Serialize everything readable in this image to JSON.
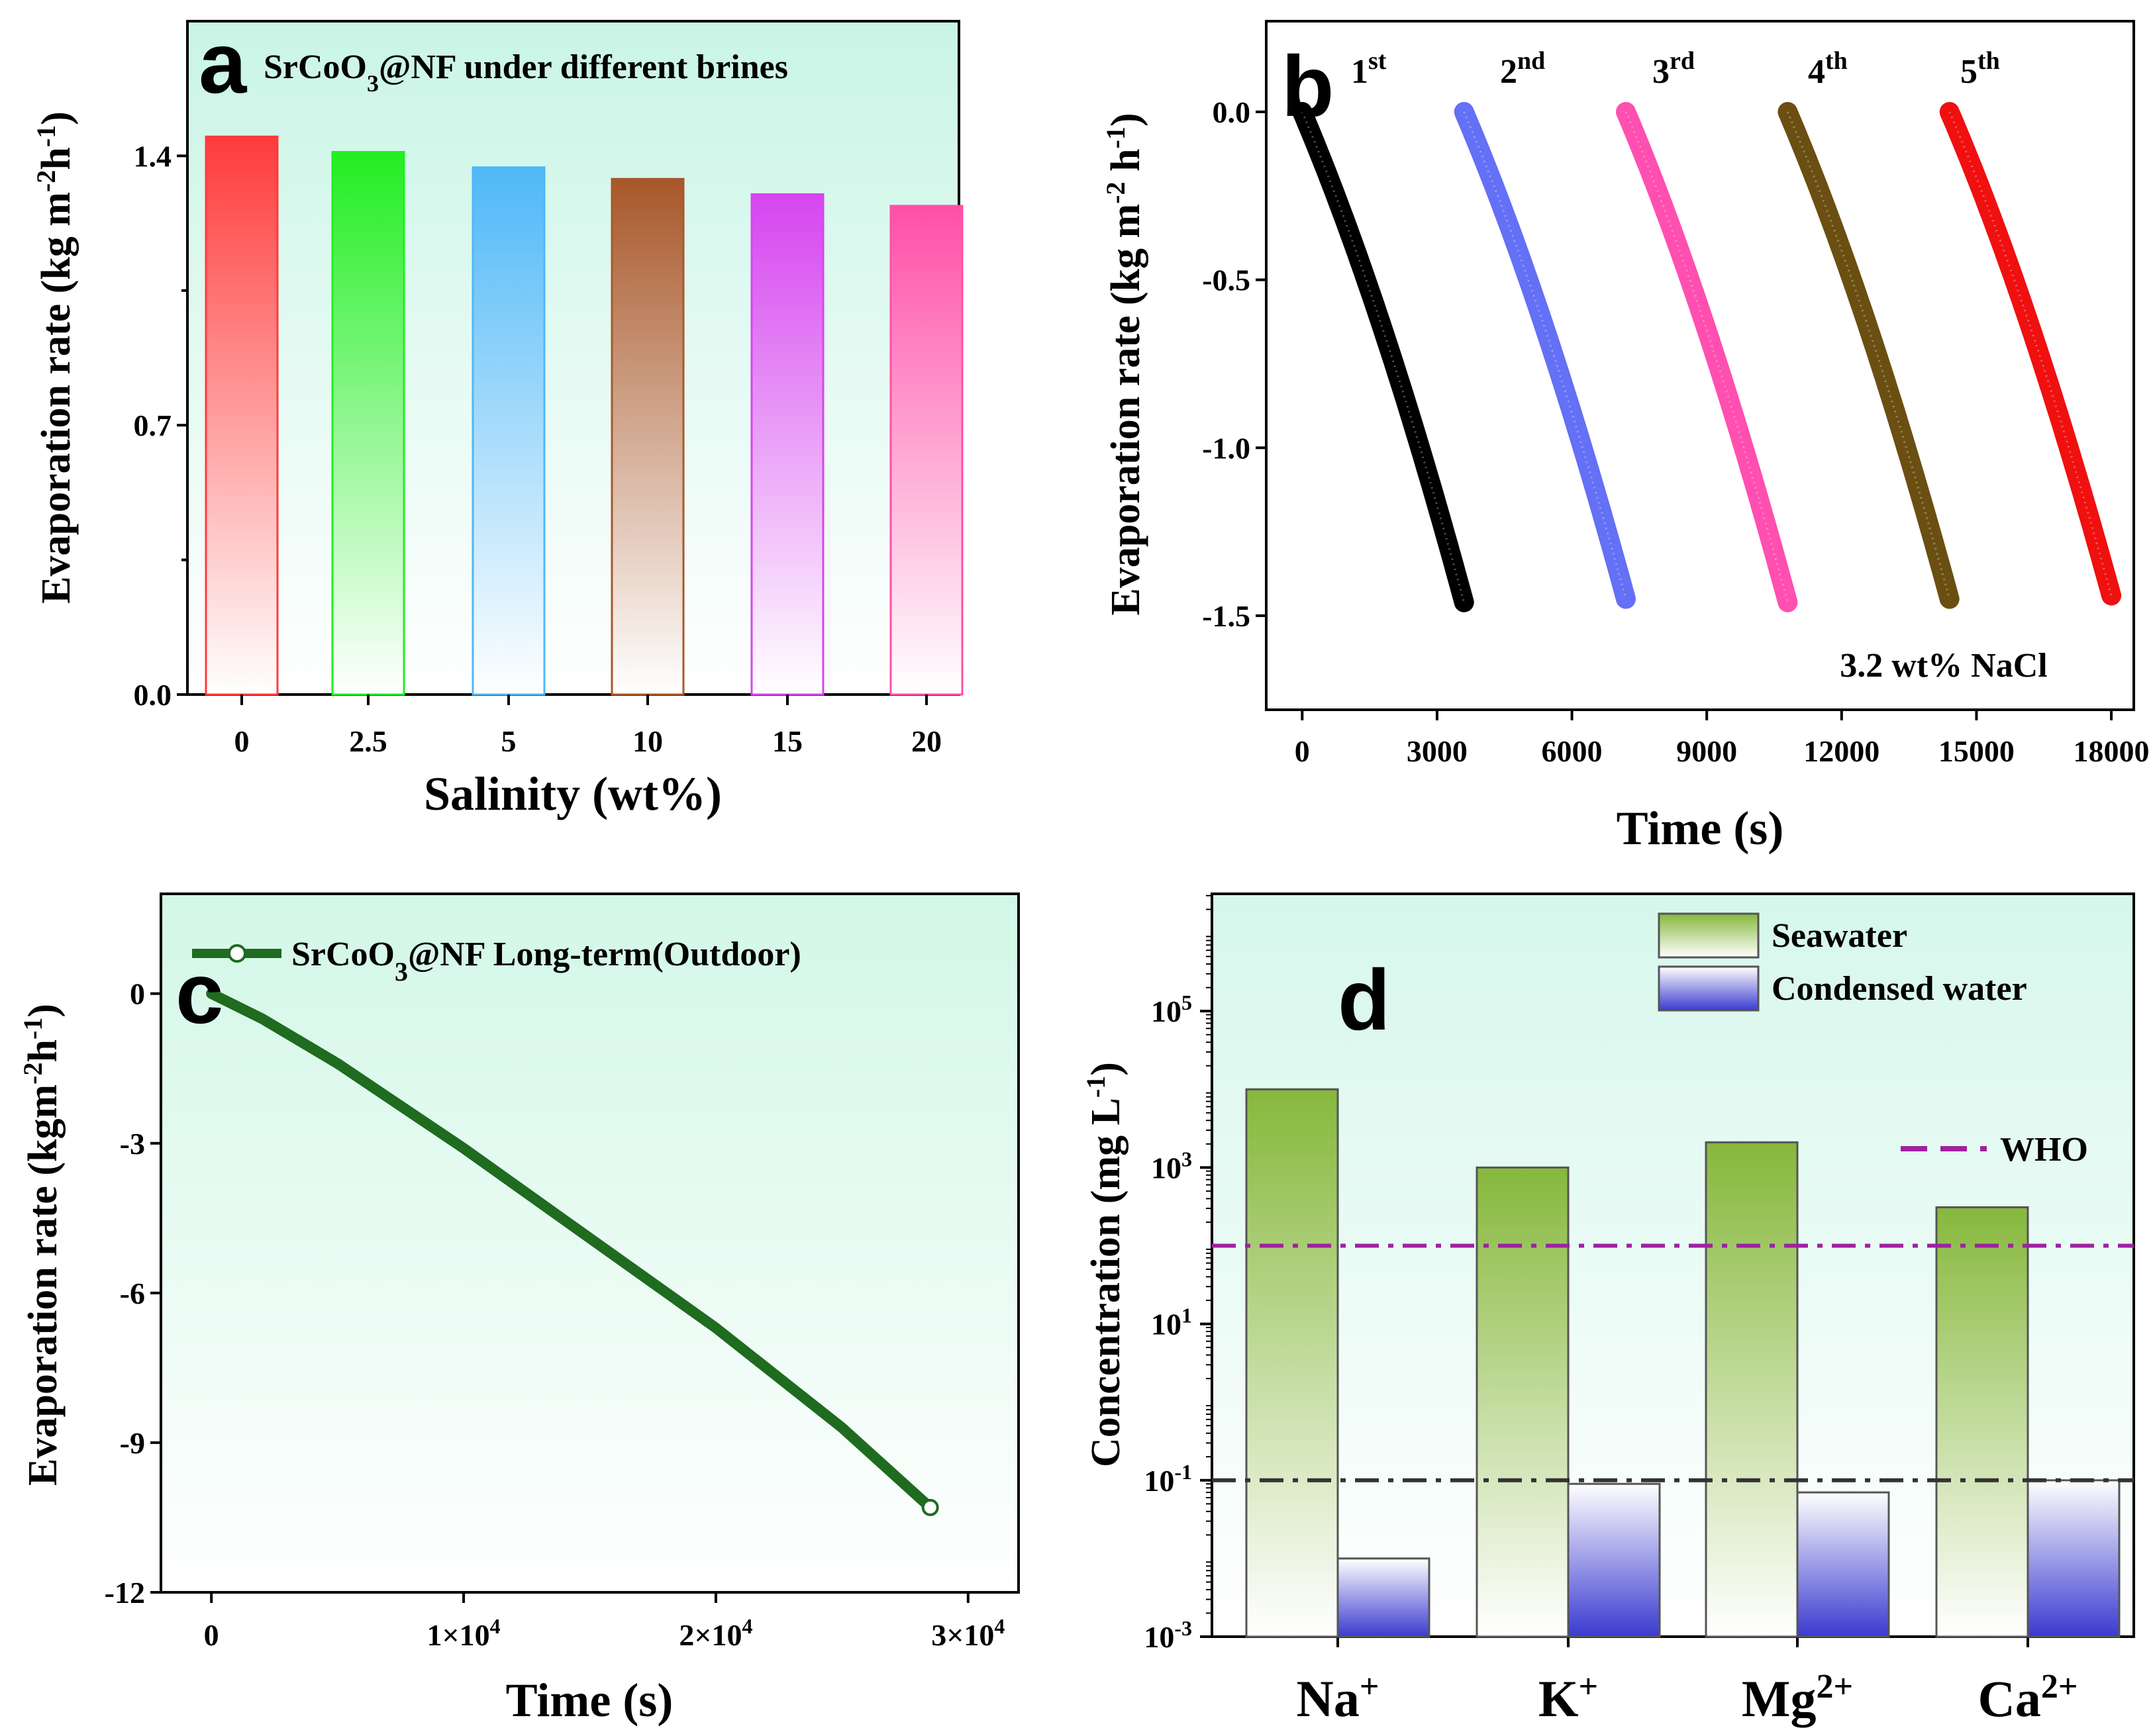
{
  "chart_data": [
    {
      "panel": "a",
      "type": "bar",
      "title": "SrCoO3@NF under different brines",
      "xlabel": "Salinity (wt%)",
      "ylabel": "Evaporation rate (kg m-2h-1)",
      "categories": [
        "0",
        "2.5",
        "5",
        "10",
        "15",
        "20"
      ],
      "values": [
        1.45,
        1.41,
        1.37,
        1.34,
        1.3,
        1.27
      ],
      "colors": [
        "#ff3b3b",
        "#22ee22",
        "#4fb8f7",
        "#a8582a",
        "#d645f0",
        "#ff4fa8"
      ],
      "ylim": [
        0,
        1.75
      ],
      "yticks": [
        0.0,
        0.7,
        1.4
      ],
      "yticklabels": [
        "0.0",
        "0.7",
        "1.4"
      ]
    },
    {
      "panel": "b",
      "type": "scatter",
      "xlabel": "Time (s)",
      "ylabel": "Evaporation rate (kg m-2 h-1)",
      "annotation": "3.2 wt% NaCl",
      "xlim": [
        -800,
        18500
      ],
      "ylim": [
        -1.78,
        0.27
      ],
      "xticks": [
        0,
        3000,
        6000,
        9000,
        12000,
        15000,
        18000
      ],
      "xticklabels": [
        "0",
        "3000",
        "6000",
        "9000",
        "12000",
        "15000",
        "18000"
      ],
      "yticks": [
        0.0,
        -0.5,
        -1.0,
        -1.5
      ],
      "yticklabels": [
        "0.0",
        "-0.5",
        "-1.0",
        "-1.5"
      ],
      "series": [
        {
          "name": "1st",
          "base": "1",
          "sup": "st",
          "color": "#000000",
          "t0": 0,
          "t1": 3600,
          "y1": -1.46
        },
        {
          "name": "2nd",
          "base": "2",
          "sup": "nd",
          "color": "#6470f5",
          "t0": 3600,
          "t1": 7200,
          "y1": -1.45
        },
        {
          "name": "3rd",
          "base": "3",
          "sup": "rd",
          "color": "#ff4fb0",
          "t0": 7200,
          "t1": 10800,
          "y1": -1.46
        },
        {
          "name": "4th",
          "base": "4",
          "sup": "th",
          "color": "#6b4f12",
          "t0": 10800,
          "t1": 14400,
          "y1": -1.45
        },
        {
          "name": "5th",
          "base": "5",
          "sup": "th",
          "color": "#f01010",
          "t0": 14400,
          "t1": 18000,
          "y1": -1.44
        }
      ]
    },
    {
      "panel": "c",
      "type": "line",
      "xlabel": "Time (s)",
      "ylabel": "Evaporation rate (kgm-2h-1)",
      "legend": "SrCoO3@NF Long-term(Outdoor)",
      "xlim": [
        -2000,
        32000
      ],
      "ylim": [
        -12,
        2
      ],
      "xticks": [
        0,
        10000,
        20000,
        30000
      ],
      "xticklabels": [
        "0",
        "1×10",
        "2×10",
        "3×10"
      ],
      "xtick_exp": [
        "",
        "4",
        "4",
        "4"
      ],
      "yticks": [
        0,
        -3,
        -6,
        -9,
        -12
      ],
      "yticklabels": [
        "0",
        "-3",
        "-6",
        "-9",
        "-12"
      ],
      "x": [
        0,
        2000,
        5000,
        10000,
        15000,
        20000,
        25000,
        28500
      ],
      "y": [
        0,
        -0.5,
        -1.4,
        -3.1,
        -4.9,
        -6.7,
        -8.7,
        -10.3
      ],
      "color": "#1f6b1f"
    },
    {
      "panel": "d",
      "type": "bar",
      "ylabel": "Concentration (mg L-1)",
      "yscale": "log",
      "ylim_log10": [
        -3,
        6.5
      ],
      "yticks_log10": [
        -3,
        -1,
        1,
        3,
        5
      ],
      "ytick_base": "10",
      "ytick_exp": [
        "-3",
        "-1",
        "1",
        "3",
        "5"
      ],
      "categories": [
        "Na+",
        "K+",
        "Mg2+",
        "Ca2+"
      ],
      "category_base": [
        "Na",
        "K",
        "Mg",
        "Ca"
      ],
      "category_sup": [
        "+",
        "+",
        "2+",
        "2+"
      ],
      "series": [
        {
          "name": "Seawater",
          "values": [
            10000,
            1000,
            2100,
            310
          ],
          "color": "#7fb33a"
        },
        {
          "name": "Condensed water",
          "values": [
            0.01,
            0.09,
            0.07,
            0.1
          ],
          "color": "#3a3ad0"
        }
      ],
      "reference_lines": [
        {
          "name": "WHO",
          "value": 100,
          "color": "#a020a0"
        },
        {
          "name": "",
          "value": 0.1,
          "color": "#333333"
        }
      ]
    }
  ],
  "panel_labels": [
    "a",
    "b",
    "c",
    "d"
  ]
}
